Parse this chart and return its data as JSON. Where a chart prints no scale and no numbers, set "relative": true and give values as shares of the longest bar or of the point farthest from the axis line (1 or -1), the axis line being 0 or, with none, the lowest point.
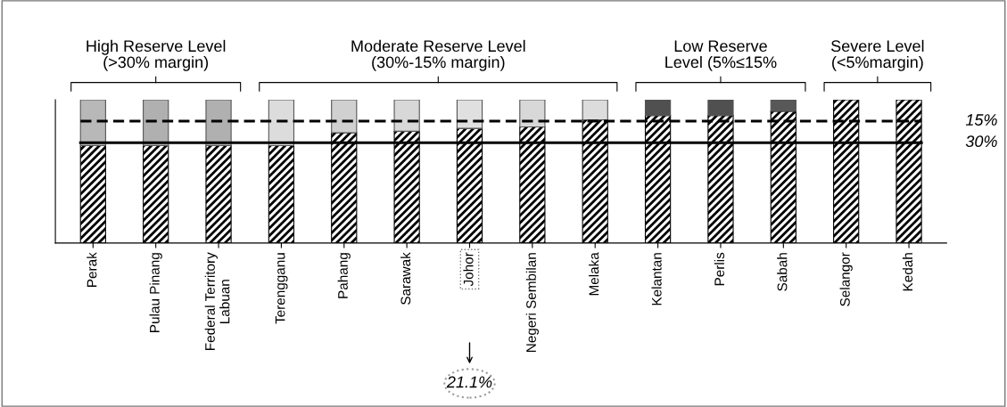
{
  "chart_data": {
    "type": "bar",
    "stacked": true,
    "relative": true,
    "categories": [
      "Perak",
      "Pulau Pinang",
      "Federal Territory\nLabuan",
      "Terengganu",
      "Pahang",
      "Sarawak",
      "Johor",
      "Negeri Sembilan",
      "Melaka",
      "Kelantan",
      "Perlis",
      "Sabah",
      "Selangor",
      "Kedah"
    ],
    "series": [
      {
        "color": "#000000",
        "values": [
          0.68,
          0.68,
          0.68,
          0.68,
          0.77,
          0.78,
          0.8,
          0.81,
          0.86,
          0.89,
          0.89,
          0.92,
          1.0,
          1.0
        ]
      },
      {
        "colors": [
          "#b8b8b8",
          "#b0b0b0",
          "#b0b0b0",
          "#dcdcdc",
          "#d0d0d0",
          "#d8d8d8",
          "#e0e0e0",
          "#d8d8d8",
          "#dcdcdc",
          "#505050",
          "#505050",
          "#585858",
          null,
          null
        ],
        "values": [
          0.32,
          0.32,
          0.32,
          0.32,
          0.23,
          0.22,
          0.2,
          0.19,
          0.14,
          0.11,
          0.11,
          0.08,
          0,
          0
        ]
      }
    ],
    "ref_lines": [
      {
        "axis": "y",
        "value": 0.85,
        "line_style": "dashed",
        "color": "#000000"
      },
      {
        "axis": "y",
        "value": 0.7,
        "line_style": "solid",
        "color": "#000000"
      }
    ],
    "annotations": [
      "High Reserve Level\n(>30% margin)",
      "Moderate Reserve Level\n(30%-15% margin)",
      "Low Reserve\nLevel (5%≤15%",
      "Severe Level\n(<5%margin)",
      "15%",
      "30%",
      "21.1%"
    ],
    "grid": false
  }
}
